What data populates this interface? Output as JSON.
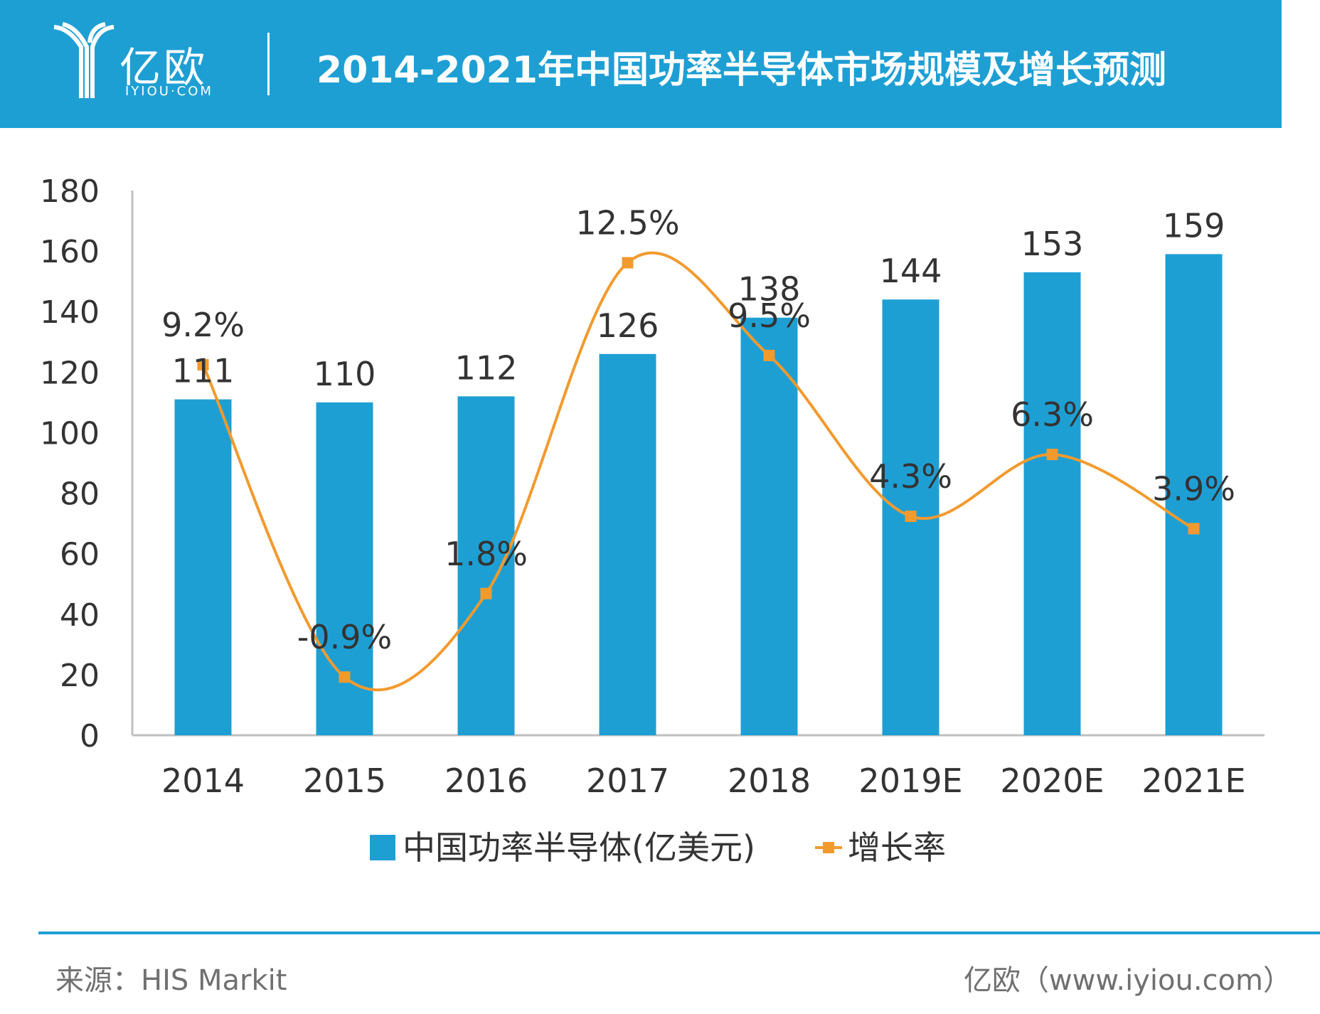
{
  "header": {
    "logo_cn": "亿欧",
    "logo_en": "IYIOU·COM",
    "title": "2014-2021年中国功率半导体市场规模及增长预测"
  },
  "footer": {
    "source": "来源：HIS Markit",
    "site": "亿欧（www.iyiou.com）"
  },
  "colors": {
    "header_bg": "#1e9fd4",
    "bar": "#1e9fd4",
    "line": "#f29a2e",
    "text": "#333333",
    "axis": "#bfbfbf"
  },
  "chart_data": {
    "type": "bar",
    "categories": [
      "2014",
      "2015",
      "2016",
      "2017",
      "2018",
      "2019E",
      "2020E",
      "2021E"
    ],
    "ylim": [
      0,
      180
    ],
    "yticks": [
      0,
      20,
      40,
      60,
      80,
      100,
      120,
      140,
      160,
      180
    ],
    "grid": false,
    "legend_position": "bottom",
    "series": [
      {
        "name": "中国功率半导体(亿美元)",
        "type": "bar",
        "values": [
          111,
          110,
          112,
          126,
          138,
          144,
          153,
          159
        ],
        "labels": [
          "111",
          "110",
          "112",
          "126",
          "138",
          "144",
          "153",
          "159"
        ]
      },
      {
        "name": "增长率",
        "type": "line",
        "smooth": true,
        "marker": "square",
        "values": [
          9.2,
          -0.9,
          1.8,
          12.5,
          9.5,
          4.3,
          6.3,
          3.9
        ],
        "labels": [
          "9.2%",
          "-0.9%",
          "1.8%",
          "12.5%",
          "9.5%",
          "4.3%",
          "6.3%",
          "3.9%"
        ]
      }
    ]
  }
}
